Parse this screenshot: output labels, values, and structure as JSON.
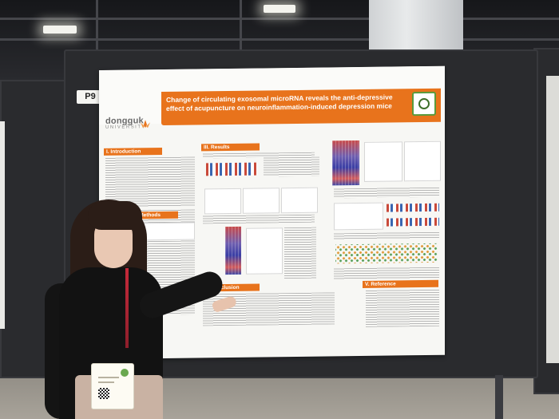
{
  "poster": {
    "board_number": "P9",
    "university": {
      "name": "dongguk",
      "subtitle": "UNIVERSITY"
    },
    "title": "Change of circulating exosomal microRNA reveals the anti-depressive effect of acupuncture on neuroinflammation-induced depression mice",
    "sections": {
      "introduction": "I. Introduction",
      "methods": "II. Methods",
      "results": "III. Results",
      "conclusion": "IV. Conclusion",
      "reference": "V. Reference"
    },
    "colors": {
      "accent": "#e8731c",
      "background": "#f7f7f4"
    }
  },
  "scene": {
    "setting": "poster-session-hall",
    "icons": [
      "lotus-icon",
      "qr-icon",
      "badge-qr-icon"
    ]
  }
}
